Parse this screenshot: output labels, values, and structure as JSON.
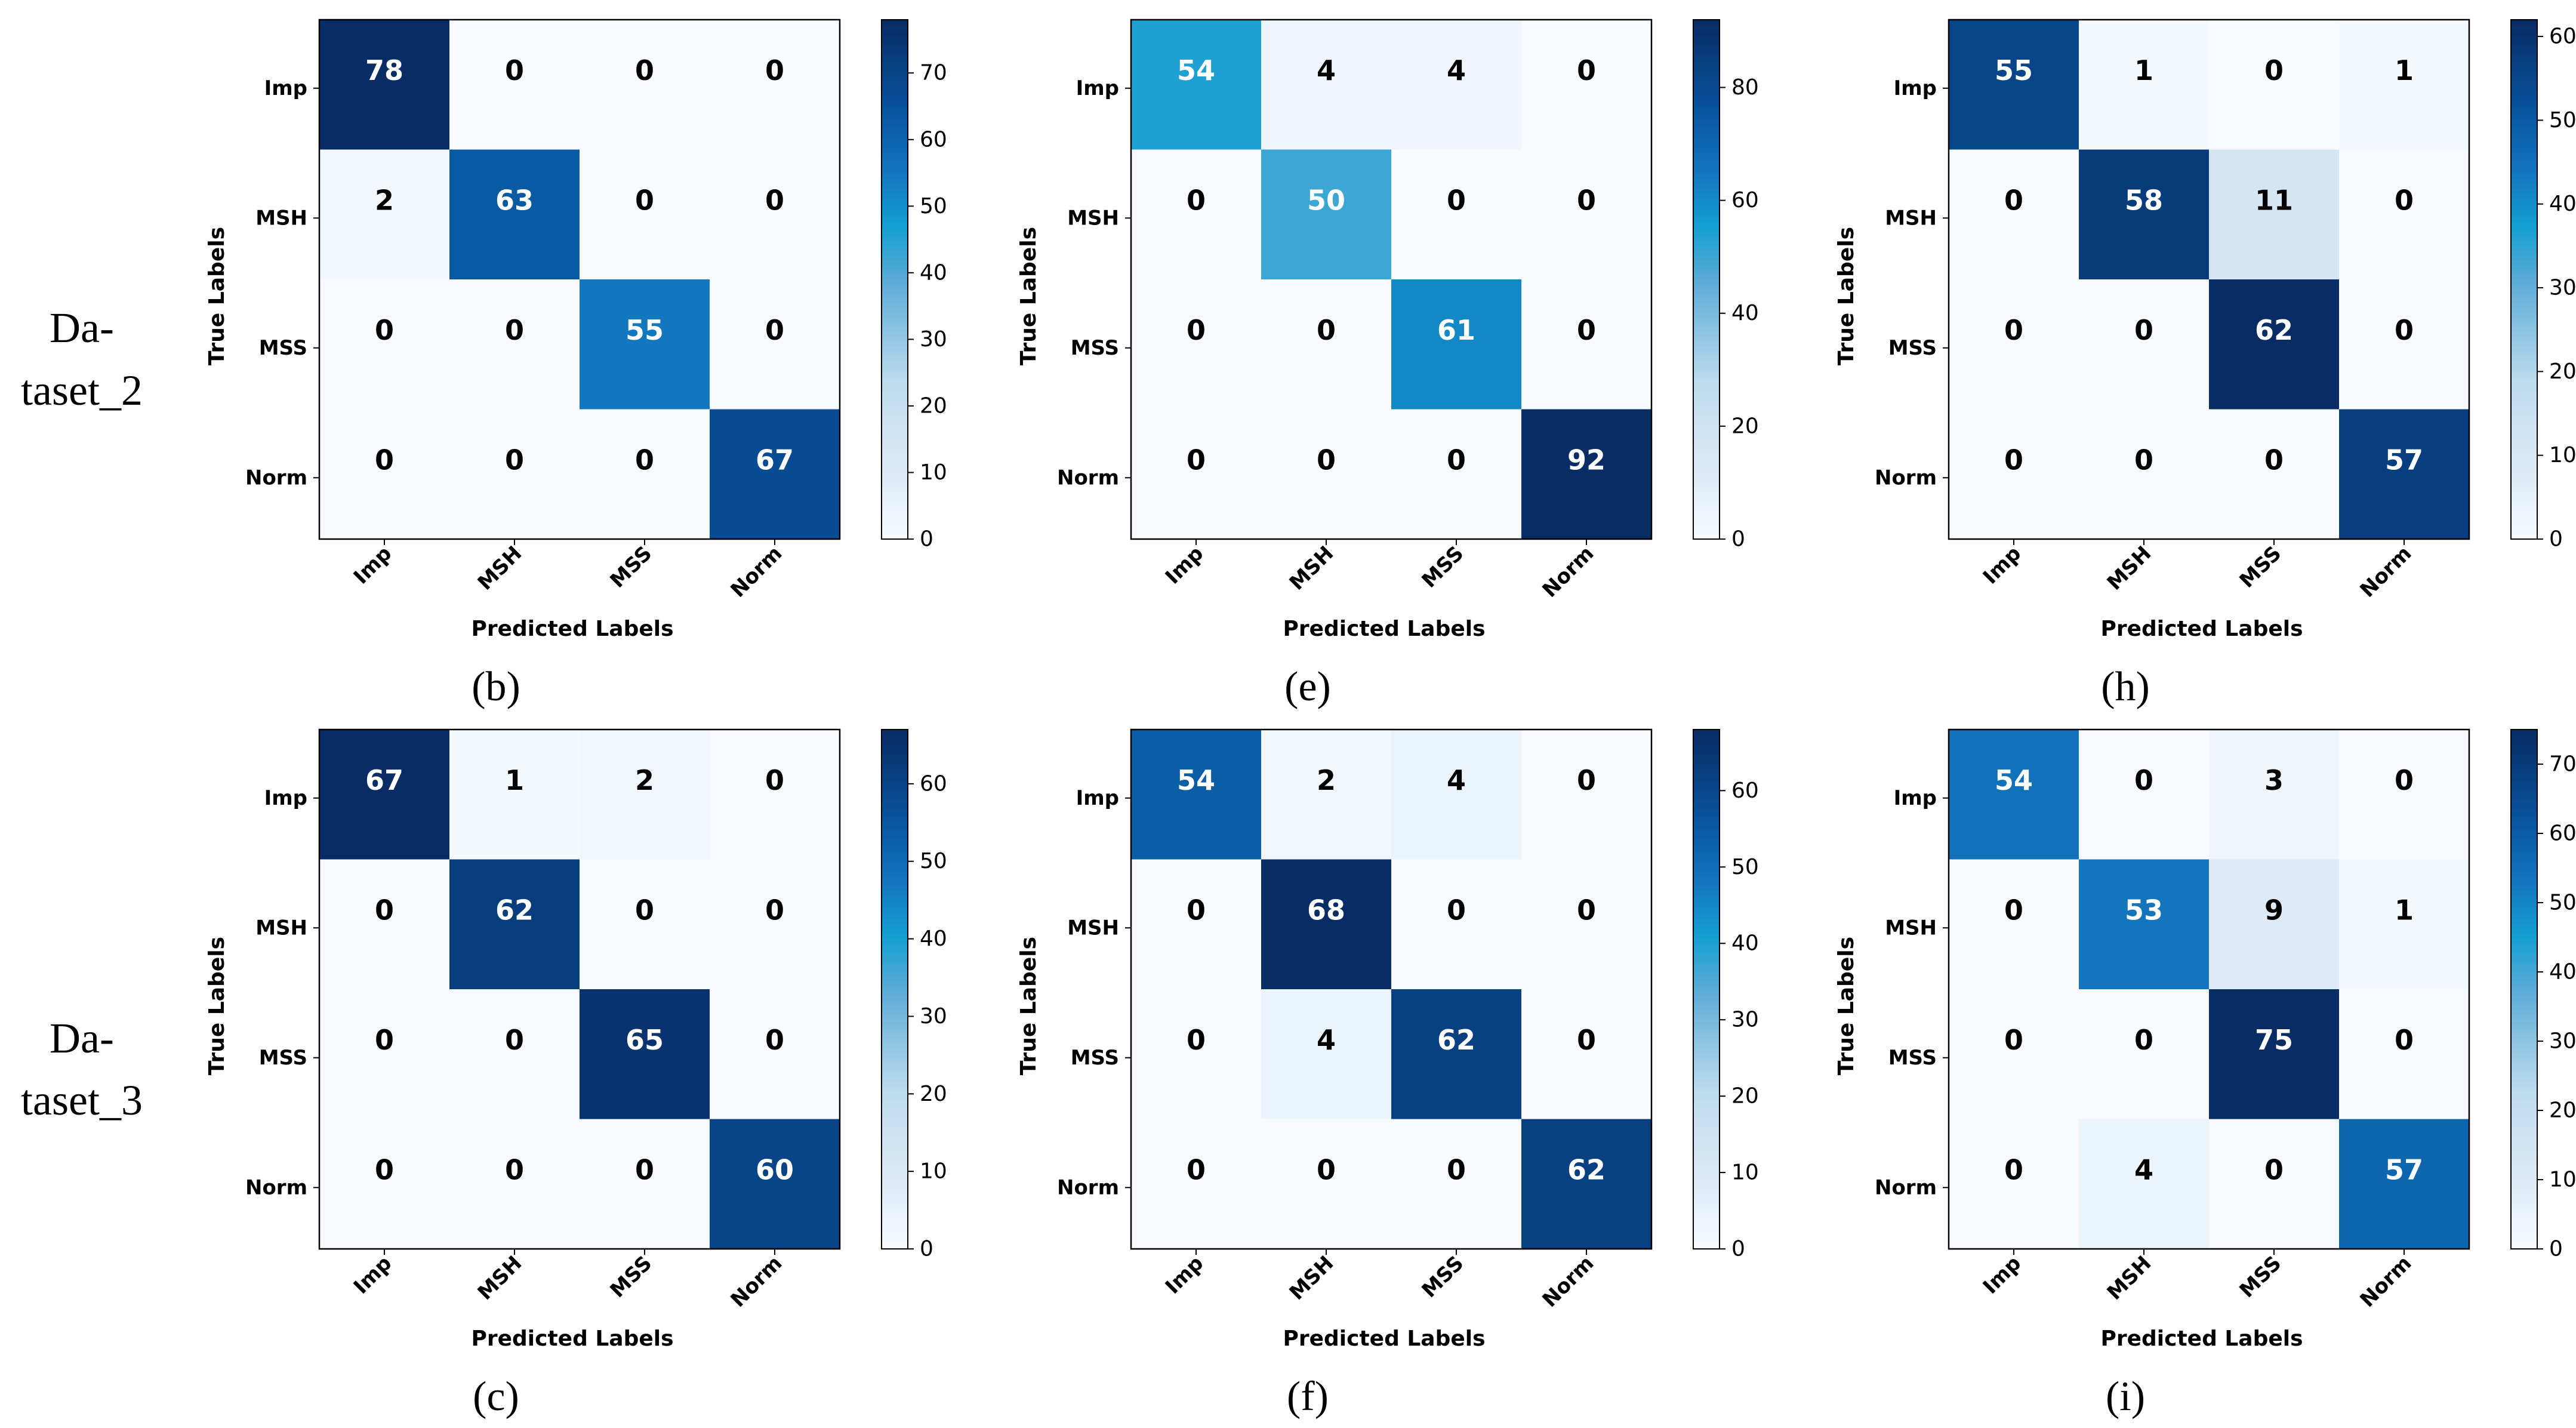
{
  "figure": {
    "row_labels": [
      {
        "line1": "Da-",
        "line2": "taset_2"
      },
      {
        "line1": "Da-",
        "line2": "taset_3"
      }
    ]
  },
  "chart_data": [
    {
      "type": "heatmap",
      "panel": "(b)",
      "row_index": 0,
      "col_index": 0,
      "xlabel": "Predicted Labels",
      "ylabel": "True Labels",
      "x_categories": [
        "Imp",
        "MSH",
        "MSS",
        "Norm"
      ],
      "y_categories": [
        "Imp",
        "MSH",
        "MSS",
        "Norm"
      ],
      "values": [
        [
          78,
          0,
          0,
          0
        ],
        [
          2,
          63,
          0,
          0
        ],
        [
          0,
          0,
          55,
          0
        ],
        [
          0,
          0,
          0,
          67
        ]
      ],
      "colorbar": {
        "min": 0,
        "max": 78,
        "ticks": [
          0,
          10,
          20,
          30,
          40,
          50,
          60,
          70
        ]
      },
      "colormap": "Blues"
    },
    {
      "type": "heatmap",
      "panel": "(e)",
      "row_index": 0,
      "col_index": 1,
      "xlabel": "Predicted Labels",
      "ylabel": "True Labels",
      "x_categories": [
        "Imp",
        "MSH",
        "MSS",
        "Norm"
      ],
      "y_categories": [
        "Imp",
        "MSH",
        "MSS",
        "Norm"
      ],
      "values": [
        [
          54,
          4,
          4,
          0
        ],
        [
          0,
          50,
          0,
          0
        ],
        [
          0,
          0,
          61,
          0
        ],
        [
          0,
          0,
          0,
          92
        ]
      ],
      "colorbar": {
        "min": 0,
        "max": 92,
        "ticks": [
          0,
          20,
          40,
          60,
          80
        ]
      },
      "colormap": "Blues"
    },
    {
      "type": "heatmap",
      "panel": "(h)",
      "row_index": 0,
      "col_index": 2,
      "xlabel": "Predicted Labels",
      "ylabel": "True Labels",
      "x_categories": [
        "Imp",
        "MSH",
        "MSS",
        "Norm"
      ],
      "y_categories": [
        "Imp",
        "MSH",
        "MSS",
        "Norm"
      ],
      "values": [
        [
          55,
          1,
          0,
          1
        ],
        [
          0,
          58,
          11,
          0
        ],
        [
          0,
          0,
          62,
          0
        ],
        [
          0,
          0,
          0,
          57
        ]
      ],
      "colorbar": {
        "min": 0,
        "max": 62,
        "ticks": [
          0,
          10,
          20,
          30,
          40,
          50,
          60
        ]
      },
      "colormap": "Blues"
    },
    {
      "type": "heatmap",
      "panel": "(c)",
      "row_index": 1,
      "col_index": 0,
      "xlabel": "Predicted Labels",
      "ylabel": "True Labels",
      "x_categories": [
        "Imp",
        "MSH",
        "MSS",
        "Norm"
      ],
      "y_categories": [
        "Imp",
        "MSH",
        "MSS",
        "Norm"
      ],
      "values": [
        [
          67,
          1,
          2,
          0
        ],
        [
          0,
          62,
          0,
          0
        ],
        [
          0,
          0,
          65,
          0
        ],
        [
          0,
          0,
          0,
          60
        ]
      ],
      "colorbar": {
        "min": 0,
        "max": 67,
        "ticks": [
          0,
          10,
          20,
          30,
          40,
          50,
          60
        ]
      },
      "colormap": "Blues"
    },
    {
      "type": "heatmap",
      "panel": "(f)",
      "row_index": 1,
      "col_index": 1,
      "xlabel": "Predicted Labels",
      "ylabel": "True Labels",
      "x_categories": [
        "Imp",
        "MSH",
        "MSS",
        "Norm"
      ],
      "y_categories": [
        "Imp",
        "MSH",
        "MSS",
        "Norm"
      ],
      "values": [
        [
          54,
          2,
          4,
          0
        ],
        [
          0,
          68,
          0,
          0
        ],
        [
          0,
          4,
          62,
          0
        ],
        [
          0,
          0,
          0,
          62
        ]
      ],
      "colorbar": {
        "min": 0,
        "max": 68,
        "ticks": [
          0,
          10,
          20,
          30,
          40,
          50,
          60
        ]
      },
      "colormap": "Blues"
    },
    {
      "type": "heatmap",
      "panel": "(i)",
      "row_index": 1,
      "col_index": 2,
      "xlabel": "Predicted Labels",
      "ylabel": "True Labels",
      "x_categories": [
        "Imp",
        "MSH",
        "MSS",
        "Norm"
      ],
      "y_categories": [
        "Imp",
        "MSH",
        "MSS",
        "Norm"
      ],
      "values": [
        [
          54,
          0,
          3,
          0
        ],
        [
          0,
          53,
          9,
          1
        ],
        [
          0,
          0,
          75,
          0
        ],
        [
          0,
          4,
          0,
          57
        ]
      ],
      "colorbar": {
        "min": 0,
        "max": 75,
        "ticks": [
          0,
          10,
          20,
          30,
          40,
          50,
          60,
          70
        ]
      },
      "colormap": "Blues"
    }
  ]
}
